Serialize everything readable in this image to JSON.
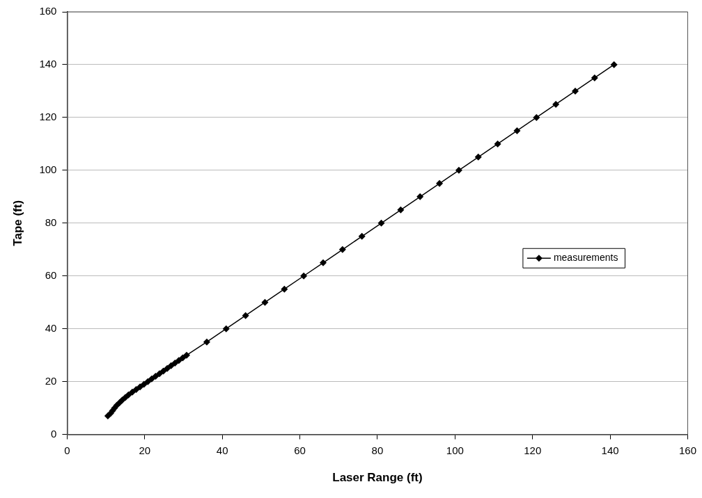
{
  "chart_data": {
    "type": "line",
    "xlabel": "Laser Range (ft)",
    "ylabel": "Tape (ft)",
    "x": [
      10.5,
      11.2,
      11.7,
      12.2,
      12.8,
      13.5,
      14.2,
      15,
      15.8,
      16.8,
      17.8,
      18.8,
      19.8,
      20.8,
      21.8,
      22.8,
      23.8,
      24.8,
      25.8,
      26.8,
      27.8,
      28.8,
      29.8,
      30.8,
      36,
      41,
      46,
      51,
      56,
      61,
      66,
      71,
      76,
      81,
      86,
      91,
      96,
      101,
      106,
      111,
      116,
      121,
      126,
      131,
      136,
      141
    ],
    "series": [
      {
        "name": "measurements",
        "color": "#000000",
        "values": [
          7,
          8,
          9,
          10,
          11,
          12,
          13,
          14,
          15,
          16,
          17,
          18,
          19,
          20,
          21,
          22,
          23,
          24,
          25,
          26,
          27,
          28,
          29,
          30,
          35,
          40,
          45,
          50,
          55,
          60,
          65,
          70,
          75,
          80,
          85,
          90,
          95,
          100,
          105,
          110,
          115,
          120,
          125,
          130,
          135,
          140
        ]
      }
    ],
    "xlim": [
      0,
      160
    ],
    "xticks": [
      0,
      20,
      40,
      60,
      80,
      100,
      120,
      140,
      160
    ],
    "ylim": [
      0,
      160
    ],
    "yticks": [
      0,
      20,
      40,
      60,
      80,
      100,
      120,
      140,
      160
    ],
    "grid": "y",
    "legend": "right",
    "marker": "diamond",
    "line_style": "solid"
  }
}
